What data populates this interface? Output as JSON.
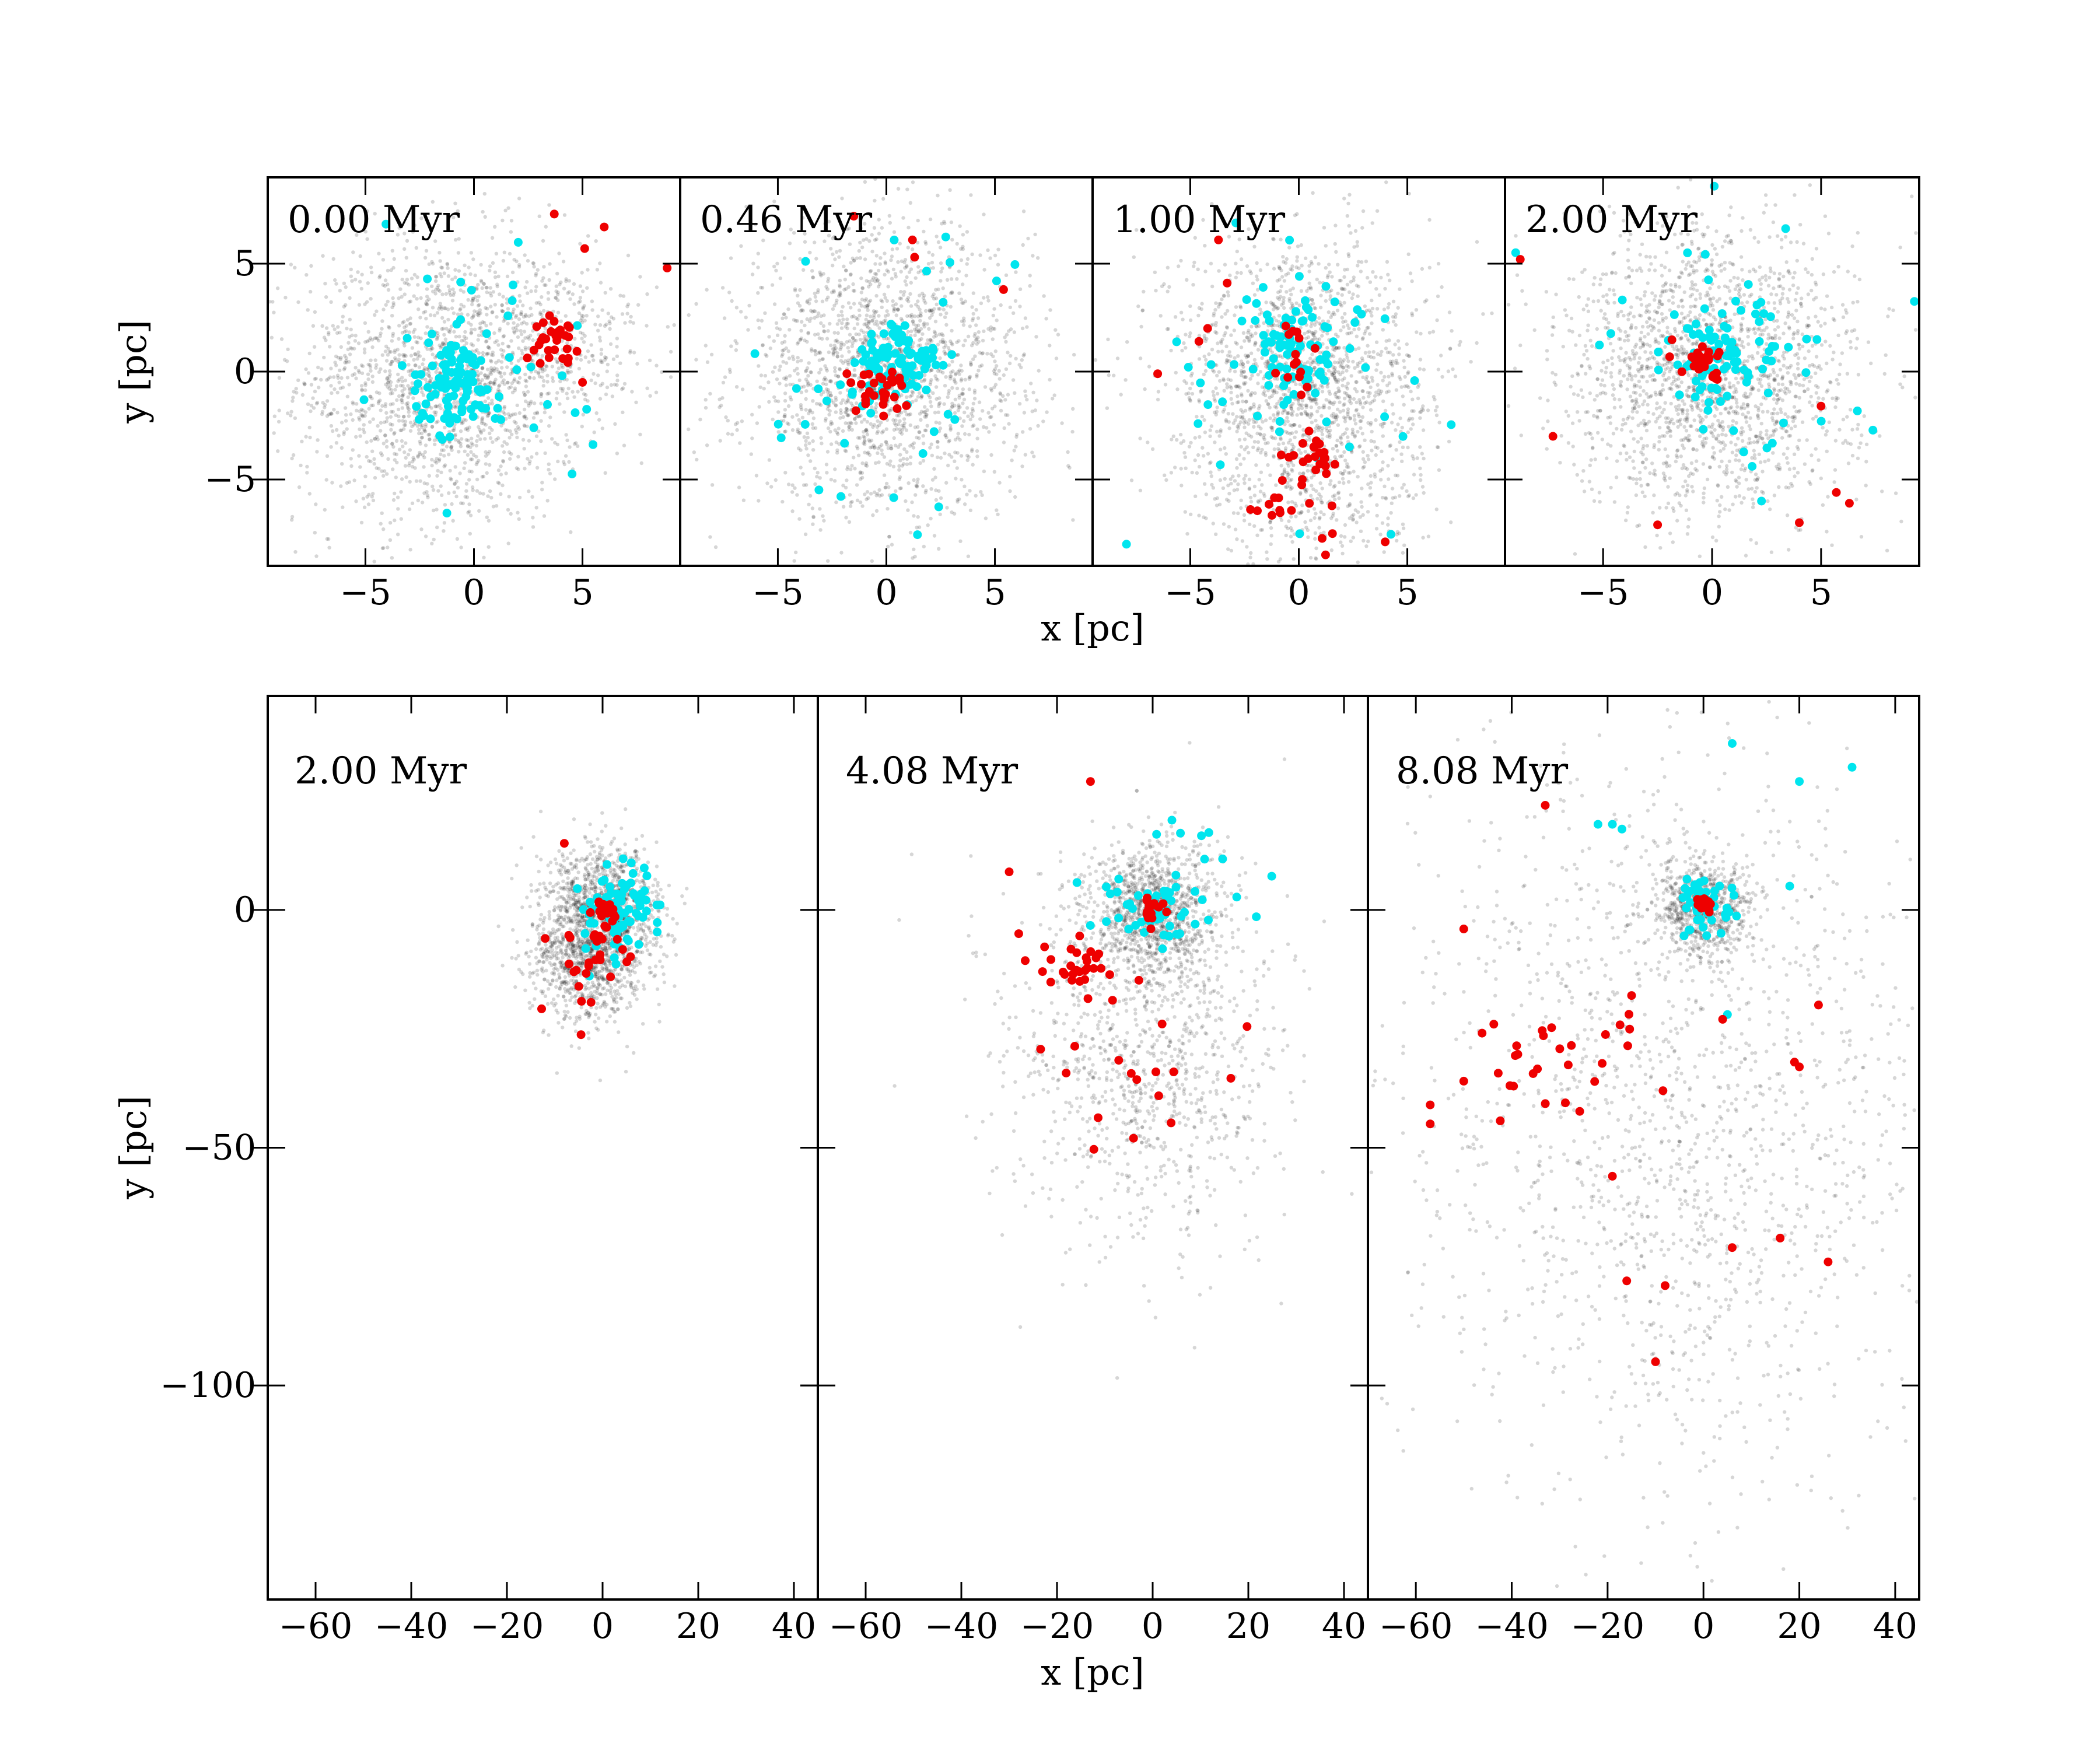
{
  "figure": {
    "description_free": true,
    "colors": {
      "gas": "#000000",
      "group_a": "#00e5ee",
      "group_b": "#ee0000",
      "frame": "#000000"
    }
  },
  "chart_data": [
    {
      "type": "scatter",
      "row": "top",
      "panel": 1,
      "annotation": "0.00 Myr",
      "xlabel": "",
      "ylabel": "y [pc]",
      "xlim": [
        -9.5,
        9.5
      ],
      "ylim": [
        -9,
        9
      ],
      "xticks": [
        -5,
        0,
        5
      ],
      "xtick_labels": [
        "−5",
        "0",
        "5"
      ],
      "yticks": [
        -5,
        0,
        5
      ],
      "ytick_labels": [
        "−5",
        "0",
        "5"
      ],
      "series": [
        {
          "name": "gas",
          "clumps": [
            {
              "cx": -1.5,
              "cy": -0.5,
              "sx": 3.3,
              "sy": 3.3,
              "n": 1700
            },
            {
              "cx": 4.0,
              "cy": 1.5,
              "sx": 2.0,
              "sy": 2.0,
              "n": 300
            }
          ]
        },
        {
          "name": "cyan stars",
          "clumps": [
            {
              "cx": -0.8,
              "cy": -0.5,
              "sx": 1.0,
              "sy": 1.0,
              "n": 95
            },
            {
              "cx": -0.5,
              "cy": -0.3,
              "sx": 4.0,
              "sy": 4.0,
              "n": 35
            }
          ]
        },
        {
          "name": "red stars",
          "clumps": [
            {
              "cx": 3.8,
              "cy": 1.5,
              "sx": 0.5,
              "sy": 0.5,
              "n": 30
            }
          ],
          "x": [
            3.7,
            6.0,
            5.1,
            8.9,
            5.0
          ],
          "y": [
            7.3,
            6.7,
            5.7,
            4.8,
            -0.5
          ]
        }
      ]
    },
    {
      "type": "scatter",
      "row": "top",
      "panel": 2,
      "annotation": "0.46 Myr",
      "xlabel": "",
      "ylabel": "",
      "xlim": [
        -9.5,
        9.5
      ],
      "ylim": [
        -9,
        9
      ],
      "xticks": [
        -5,
        0,
        5
      ],
      "xtick_labels": [
        "−5",
        "0",
        "5"
      ],
      "yticks": [
        -5,
        0,
        5
      ],
      "series": [
        {
          "name": "gas",
          "clumps": [
            {
              "cx": 0.0,
              "cy": 0.0,
              "sx": 3.3,
              "sy": 3.3,
              "n": 1900
            }
          ]
        },
        {
          "name": "cyan stars",
          "clumps": [
            {
              "cx": 0.6,
              "cy": 0.3,
              "sx": 1.0,
              "sy": 1.0,
              "n": 90
            },
            {
              "cx": 0.0,
              "cy": -0.5,
              "sx": 4.0,
              "sy": 4.0,
              "n": 35
            }
          ]
        },
        {
          "name": "red stars",
          "clumps": [
            {
              "cx": -0.4,
              "cy": -0.8,
              "sx": 0.7,
              "sy": 0.5,
              "n": 30
            }
          ],
          "x": [
            1.2,
            1.3,
            5.4,
            -1.5
          ],
          "y": [
            6.1,
            5.3,
            3.8,
            7.2
          ]
        }
      ]
    },
    {
      "type": "scatter",
      "row": "top",
      "panel": 3,
      "annotation": "1.00 Myr",
      "xlabel": "x [pc]",
      "ylabel": "",
      "xlim": [
        -9.5,
        9.5
      ],
      "ylim": [
        -9,
        9
      ],
      "xticks": [
        -5,
        0,
        5
      ],
      "xtick_labels": [
        "−5",
        "0",
        "5"
      ],
      "yticks": [
        -5,
        0,
        5
      ],
      "series": [
        {
          "name": "gas",
          "clumps": [
            {
              "cx": 0.0,
              "cy": 0.5,
              "sx": 3.0,
              "sy": 3.0,
              "n": 1300
            },
            {
              "cx": 0.5,
              "cy": -4.5,
              "sx": 2.8,
              "sy": 3.0,
              "n": 600
            }
          ]
        },
        {
          "name": "cyan stars",
          "clumps": [
            {
              "cx": 0.0,
              "cy": 0.8,
              "sx": 1.0,
              "sy": 1.4,
              "n": 80
            },
            {
              "cx": 0.0,
              "cy": -0.5,
              "sx": 4.0,
              "sy": 4.0,
              "n": 35
            }
          ]
        },
        {
          "name": "red stars",
          "clumps": [
            {
              "cx": 0.8,
              "cy": -3.8,
              "sx": 0.4,
              "sy": 0.5,
              "n": 18
            },
            {
              "cx": 0.3,
              "cy": -6.5,
              "sx": 1.5,
              "sy": 1.6,
              "n": 22
            },
            {
              "cx": -0.2,
              "cy": 0.8,
              "sx": 0.6,
              "sy": 0.9,
              "n": 15
            }
          ],
          "x": [
            -3.7,
            -4.2,
            -4.6,
            -3.3,
            -6.5
          ],
          "y": [
            6.1,
            2.0,
            1.4,
            4.1,
            -0.1
          ]
        }
      ]
    },
    {
      "type": "scatter",
      "row": "top",
      "panel": 4,
      "annotation": "2.00 Myr",
      "xlabel": "",
      "ylabel": "",
      "xlim": [
        -9.5,
        9.5
      ],
      "ylim": [
        -9,
        9
      ],
      "xticks": [
        -5,
        0,
        5
      ],
      "xtick_labels": [
        "−5",
        "0",
        "5"
      ],
      "yticks": [
        -5,
        0,
        5
      ],
      "series": [
        {
          "name": "gas",
          "clumps": [
            {
              "cx": 0.0,
              "cy": 0.0,
              "sx": 3.3,
              "sy": 3.3,
              "n": 1900
            }
          ]
        },
        {
          "name": "cyan stars",
          "clumps": [
            {
              "cx": 0.5,
              "cy": 0.5,
              "sx": 1.4,
              "sy": 1.3,
              "n": 75
            },
            {
              "cx": 0.0,
              "cy": 0.0,
              "sx": 4.5,
              "sy": 4.5,
              "n": 35
            }
          ]
        },
        {
          "name": "red stars",
          "clumps": [
            {
              "cx": -0.3,
              "cy": 0.5,
              "sx": 0.6,
              "sy": 0.4,
              "n": 28
            }
          ],
          "x": [
            -8.8,
            -7.3,
            -2.5,
            4.0,
            6.3,
            5.0,
            5.7,
            2.6
          ],
          "y": [
            5.2,
            -3.0,
            -7.1,
            -7.0,
            -6.1,
            -1.6,
            -5.6,
            -9.0
          ]
        }
      ]
    },
    {
      "type": "scatter",
      "row": "bottom",
      "panel": 1,
      "annotation": "2.00 Myr",
      "xlabel": "",
      "ylabel": "y [pc]",
      "xlim": [
        -70,
        45
      ],
      "ylim": [
        -145,
        45
      ],
      "xticks": [
        -60,
        -40,
        -20,
        0,
        20,
        40
      ],
      "xtick_labels": [
        "−60",
        "−40",
        "−20",
        "0",
        "20",
        "40"
      ],
      "yticks": [
        -100,
        -50,
        0
      ],
      "ytick_labels": [
        "−100",
        "−50",
        "0"
      ],
      "series": [
        {
          "name": "gas",
          "clumps": [
            {
              "cx": 0.0,
              "cy": 0.0,
              "sx": 6.0,
              "sy": 6.5,
              "n": 1200
            },
            {
              "cx": -3.0,
              "cy": -12.0,
              "sx": 6.0,
              "sy": 6.0,
              "n": 700
            }
          ]
        },
        {
          "name": "cyan stars",
          "clumps": [
            {
              "cx": 4.0,
              "cy": 0.0,
              "sx": 3.0,
              "sy": 4.0,
              "n": 60
            },
            {
              "cx": 2.0,
              "cy": 0.0,
              "sx": 6.0,
              "sy": 6.0,
              "n": 25
            }
          ]
        },
        {
          "name": "red stars",
          "clumps": [
            {
              "cx": 0.0,
              "cy": 0.0,
              "sx": 1.0,
              "sy": 1.0,
              "n": 15
            },
            {
              "cx": 0.0,
              "cy": -10.0,
              "sx": 5.0,
              "sy": 6.0,
              "n": 30
            }
          ],
          "x": [
            -8,
            -12,
            -6
          ],
          "y": [
            14,
            -6,
            -13
          ]
        }
      ]
    },
    {
      "type": "scatter",
      "row": "bottom",
      "panel": 2,
      "annotation": "4.08 Myr",
      "xlabel": "x [pc]",
      "ylabel": "",
      "xlim": [
        -70,
        45
      ],
      "ylim": [
        -145,
        45
      ],
      "xticks": [
        -60,
        -40,
        -20,
        0,
        20,
        40
      ],
      "xtick_labels": [
        "−60",
        "−40",
        "−20",
        "0",
        "20",
        "40"
      ],
      "yticks": [
        -100,
        -50,
        0
      ],
      "series": [
        {
          "name": "gas",
          "clumps": [
            {
              "cx": 0.0,
              "cy": 0.0,
              "sx": 6.5,
              "sy": 6.5,
              "n": 1000
            },
            {
              "cx": -2.0,
              "cy": -30.0,
              "sx": 14.0,
              "sy": 20.0,
              "n": 1100
            }
          ]
        },
        {
          "name": "cyan stars",
          "clumps": [
            {
              "cx": 0.0,
              "cy": 0.0,
              "sx": 4.0,
              "sy": 4.0,
              "n": 45
            },
            {
              "cx": 5.0,
              "cy": 5.0,
              "sx": 10.0,
              "sy": 10.0,
              "n": 20
            }
          ]
        },
        {
          "name": "red stars",
          "clumps": [
            {
              "cx": 0.0,
              "cy": 0.0,
              "sx": 1.3,
              "sy": 1.3,
              "n": 18
            },
            {
              "cx": -15.0,
              "cy": -13.0,
              "sx": 5.0,
              "sy": 3.0,
              "n": 30
            },
            {
              "cx": -2.0,
              "cy": -35.0,
              "sx": 10.0,
              "sy": 8.0,
              "n": 15
            }
          ],
          "x": [
            -13,
            -30,
            -28,
            -4
          ],
          "y": [
            27,
            8,
            -5,
            -48
          ]
        }
      ]
    },
    {
      "type": "scatter",
      "row": "bottom",
      "panel": 3,
      "annotation": "8.08 Myr",
      "xlabel": "",
      "ylabel": "",
      "xlim": [
        -70,
        45
      ],
      "ylim": [
        -145,
        45
      ],
      "xticks": [
        -60,
        -40,
        -20,
        0,
        20,
        40
      ],
      "xtick_labels": [
        "−60",
        "−40",
        "−20",
        "0",
        "20",
        "40"
      ],
      "yticks": [
        -100,
        -50,
        0
      ],
      "series": [
        {
          "name": "gas",
          "clumps": [
            {
              "cx": 0.0,
              "cy": 0.0,
              "sx": 5.5,
              "sy": 5.5,
              "n": 700
            },
            {
              "cx": -5.0,
              "cy": -45.0,
              "sx": 28.0,
              "sy": 38.0,
              "n": 1600
            }
          ]
        },
        {
          "name": "cyan stars",
          "clumps": [
            {
              "cx": 0.0,
              "cy": 1.0,
              "sx": 3.5,
              "sy": 3.0,
              "n": 45
            }
          ],
          "x": [
            -22,
            -19,
            -17,
            6,
            20,
            31,
            5,
            18
          ],
          "y": [
            18,
            18,
            17,
            35,
            27,
            30,
            -22,
            5
          ]
        },
        {
          "name": "red stars",
          "clumps": [
            {
              "cx": 0.0,
              "cy": 1.0,
              "sx": 1.3,
              "sy": 1.0,
              "n": 15
            },
            {
              "cx": -30.0,
              "cy": -32.0,
              "sx": 9.0,
              "sy": 6.0,
              "n": 28
            }
          ],
          "x": [
            -33,
            -50,
            -57,
            -57,
            -50,
            -19,
            -16,
            -8,
            -10,
            6,
            16,
            26,
            19,
            24,
            4,
            -15,
            20
          ],
          "y": [
            22,
            -4,
            -41,
            -45,
            -36,
            -56,
            -78,
            -79,
            -95,
            -71,
            -69,
            -74,
            -32,
            -20,
            -23,
            -18,
            -33
          ]
        }
      ]
    }
  ]
}
